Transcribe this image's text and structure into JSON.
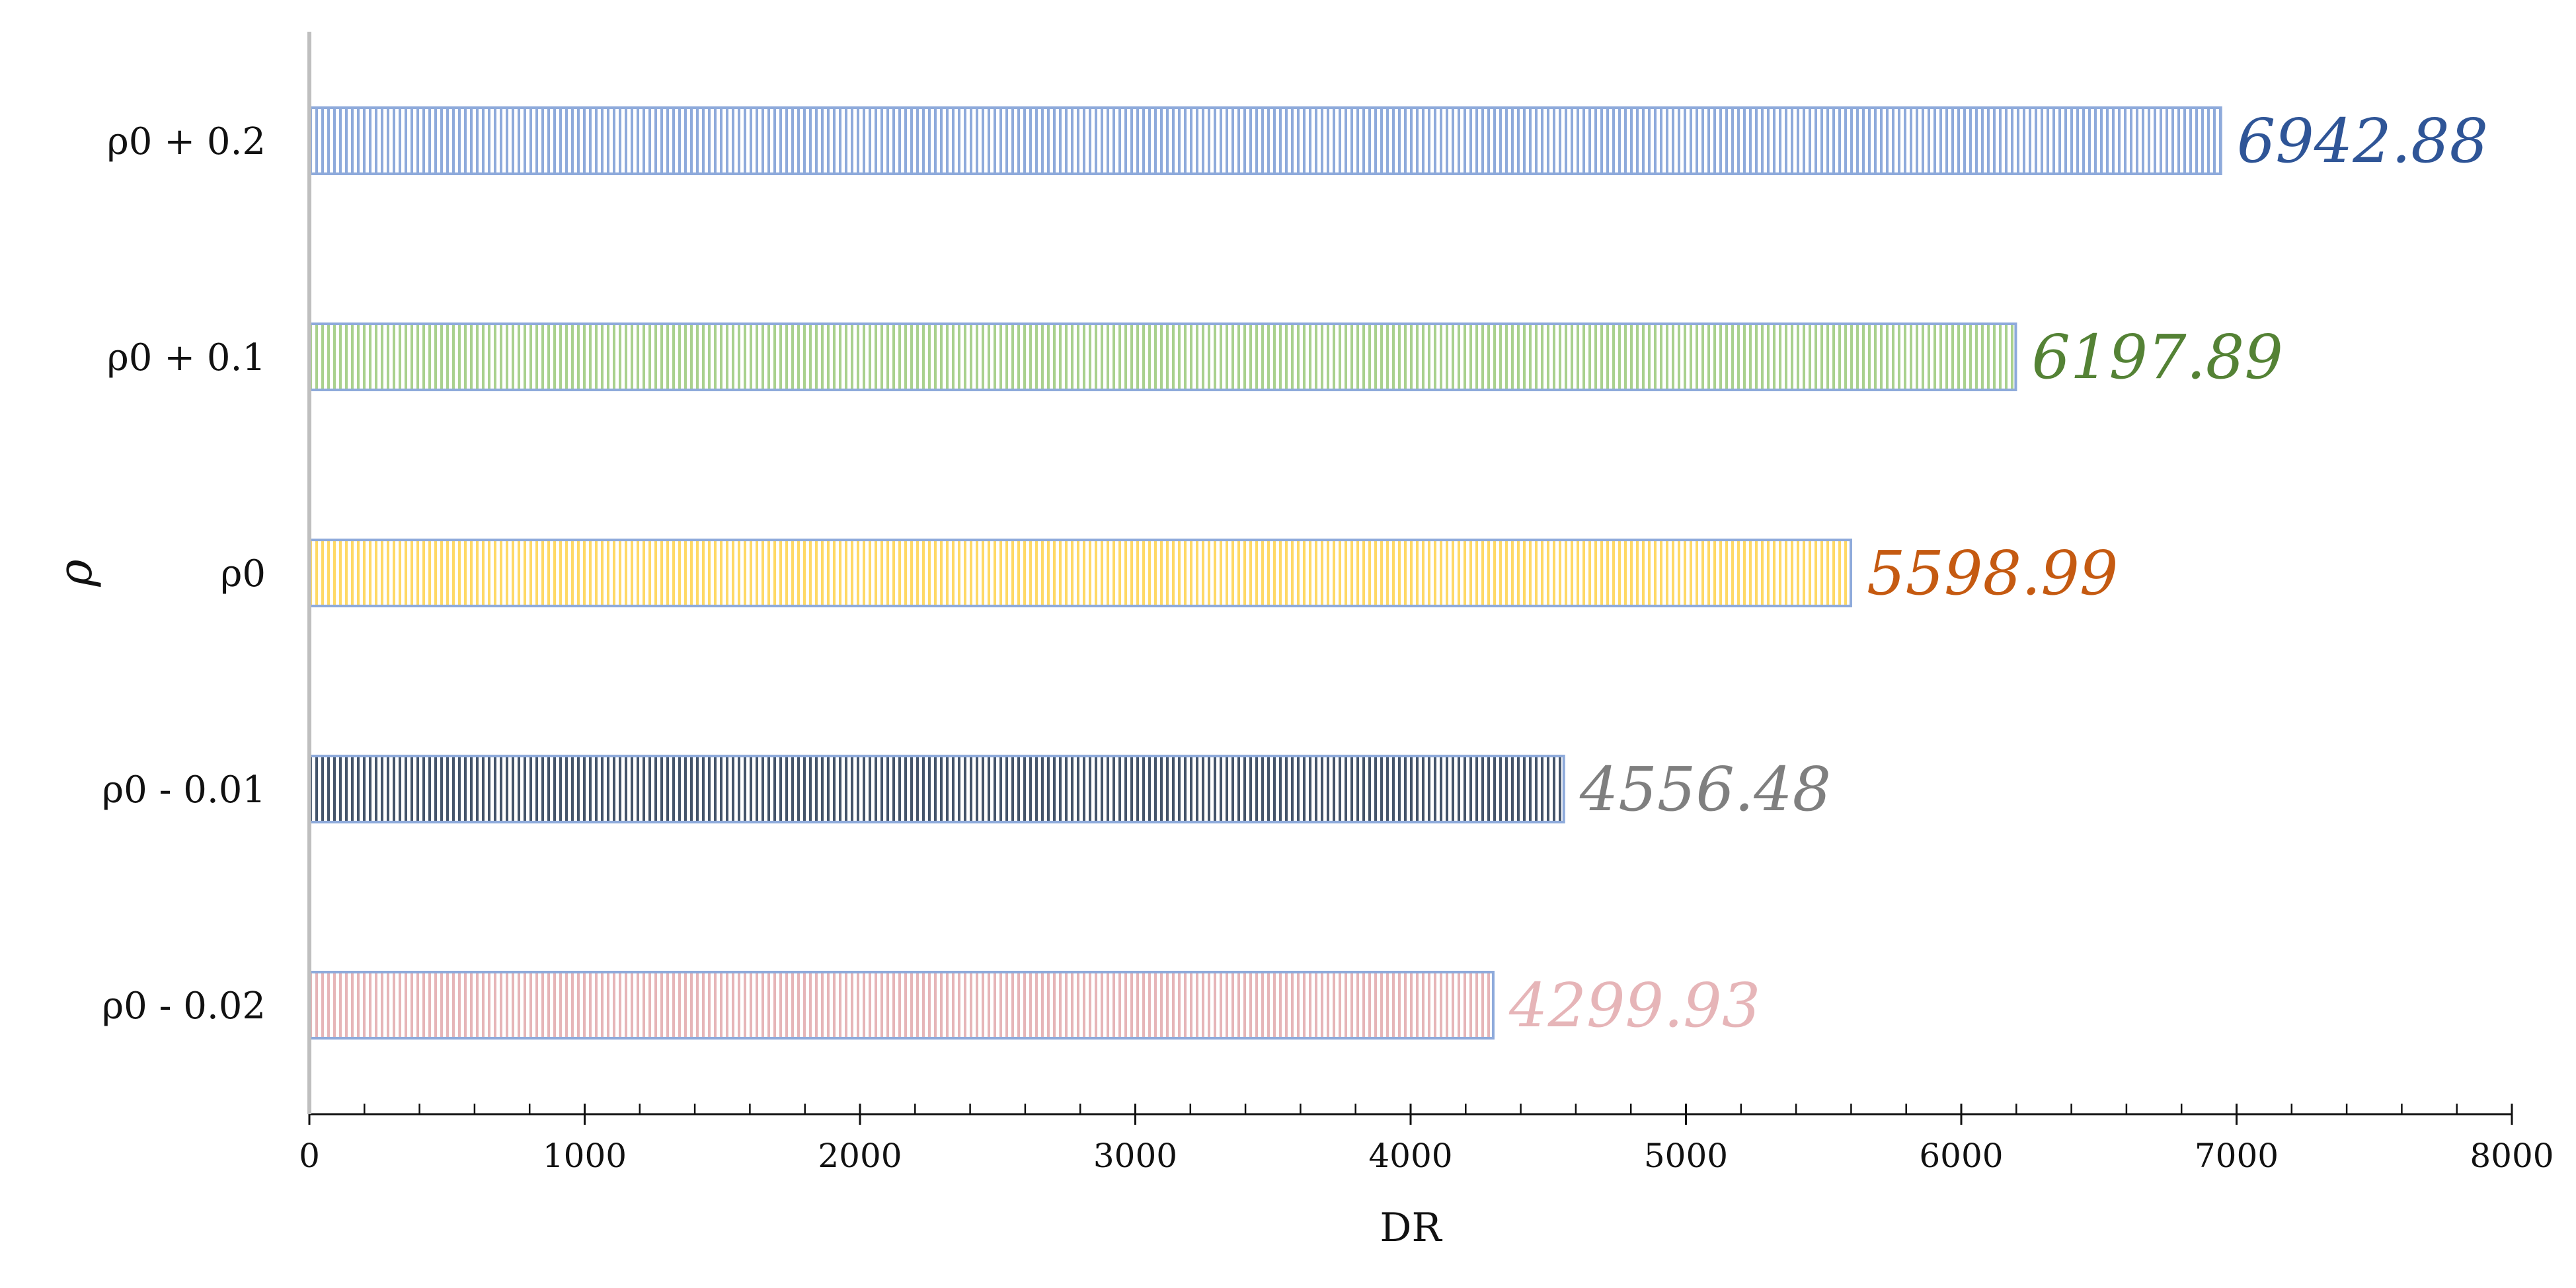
{
  "chart_data": {
    "type": "bar",
    "orientation": "horizontal",
    "categories": [
      "ρ0 + 0.2",
      "ρ0 + 0.1",
      "ρ0",
      "ρ0 - 0.01",
      "ρ0 - 0.02"
    ],
    "values": [
      6942.88,
      6197.89,
      5598.99,
      4556.48,
      4299.93
    ],
    "data_labels": [
      "6942.88",
      "6197.89",
      "5598.99",
      "4556.48",
      "4299.93"
    ],
    "bar_colors": [
      "#8eaadb",
      "#a9d18e",
      "#ffd966",
      "#44546a",
      "#e6b5b8"
    ],
    "label_colors": [
      "#2f5597",
      "#548235",
      "#c55a11",
      "#7f7f7f",
      "#e6b5b8"
    ],
    "bar_fill_pattern": "vertical-stripes",
    "bar_outline_color": "#8eaadb",
    "xlabel": "DR",
    "ylabel": "ρ",
    "xlim": [
      0,
      8000
    ],
    "x_ticks": [
      0,
      1000,
      2000,
      3000,
      4000,
      5000,
      6000,
      7000,
      8000
    ],
    "x_minor_step": 200,
    "grid": false,
    "legend": "none"
  }
}
